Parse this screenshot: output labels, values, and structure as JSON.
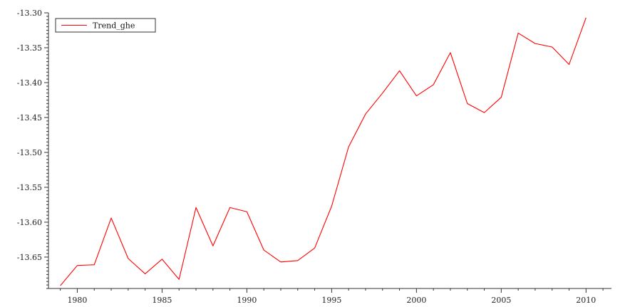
{
  "chart_data": {
    "type": "line",
    "title": "",
    "xlabel": "",
    "ylabel": "",
    "xlim": [
      1978.3,
      2011.5
    ],
    "ylim": [
      -13.695,
      -13.3
    ],
    "x_ticks": [
      1980,
      1985,
      1990,
      1995,
      2000,
      2005,
      2010
    ],
    "x_tick_labels": [
      "1980",
      "1985",
      "1990",
      "1995",
      "2000",
      "2005",
      "2010"
    ],
    "y_ticks": [
      -13.3,
      -13.35,
      -13.4,
      -13.45,
      -13.5,
      -13.55,
      -13.6,
      -13.65
    ],
    "y_tick_labels": [
      "-13.30",
      "-13.35",
      "-13.40",
      "-13.45",
      "-13.50",
      "-13.55",
      "-13.60",
      "-13.65"
    ],
    "grid": false,
    "legend": {
      "position": "top-left"
    },
    "series": [
      {
        "name": "Trend_ghe",
        "color": "#ff0000",
        "x": [
          1979,
          1980,
          1981,
          1982,
          1983,
          1984,
          1985,
          1986,
          1987,
          1988,
          1989,
          1990,
          1991,
          1992,
          1993,
          1994,
          1995,
          1996,
          1997,
          1998,
          1999,
          2000,
          2001,
          2002,
          2003,
          2004,
          2005,
          2006,
          2007,
          2008,
          2009,
          2010
        ],
        "values": [
          -13.691,
          -13.662,
          -13.661,
          -13.594,
          -13.652,
          -13.674,
          -13.653,
          -13.682,
          -13.579,
          -13.634,
          -13.579,
          -13.585,
          -13.64,
          -13.657,
          -13.655,
          -13.637,
          -13.577,
          -13.492,
          -13.445,
          -13.415,
          -13.383,
          -13.419,
          -13.403,
          -13.357,
          -13.43,
          -13.443,
          -13.421,
          -13.329,
          -13.344,
          -13.349,
          -13.374,
          -13.307
        ]
      }
    ]
  }
}
